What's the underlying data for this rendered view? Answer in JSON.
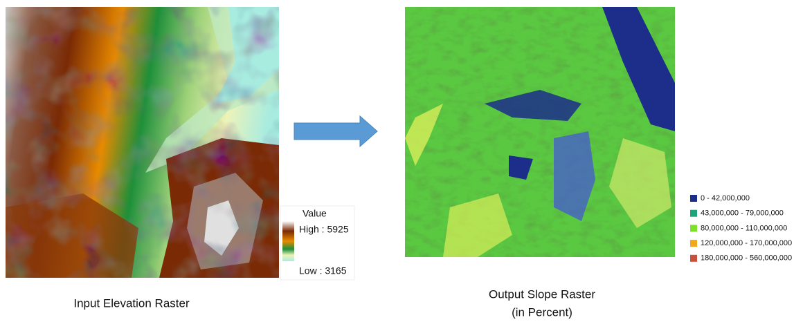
{
  "input_panel": {
    "caption": "Input Elevation Raster",
    "legend": {
      "title": "Value",
      "high_label": "High : 5925",
      "low_label": "Low : 3165"
    }
  },
  "output_panel": {
    "caption_lines": [
      "Output Slope Raster",
      "(in Percent)"
    ],
    "legend": {
      "items": [
        {
          "label": "0 - 42,000,000",
          "color": "#1c2e8a"
        },
        {
          "label": "43,000,000 - 79,000,000",
          "color": "#1fa37a"
        },
        {
          "label": "80,000,000 - 110,000,000",
          "color": "#7ee02a"
        },
        {
          "label": "120,000,000 - 170,000,000",
          "color": "#f2a81d"
        },
        {
          "label": "180,000,000 - 560,000,000",
          "color": "#c9503b"
        }
      ]
    }
  }
}
